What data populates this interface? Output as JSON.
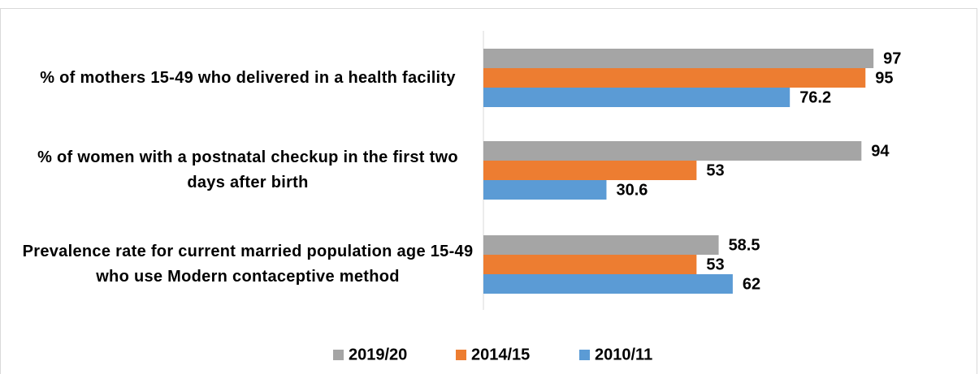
{
  "chart_data": {
    "type": "hbar",
    "categories": [
      "% of mothers 15-49 who delivered in a health facility",
      "% of women with a postnatal checkup in the first two days after birth",
      "Prevalence rate for current married population age 15-49 who use Modern contaceptive method"
    ],
    "series": [
      {
        "name": "2019/20",
        "color": "#a5a5a5",
        "values": [
          97,
          94,
          58.5
        ]
      },
      {
        "name": "2014/15",
        "color": "#ed7d31",
        "values": [
          95,
          53,
          53
        ]
      },
      {
        "name": "2010/11",
        "color": "#5b9bd5",
        "values": [
          76.2,
          30.6,
          62
        ]
      }
    ],
    "xlim": [
      0,
      100
    ],
    "legend": "bottom"
  }
}
